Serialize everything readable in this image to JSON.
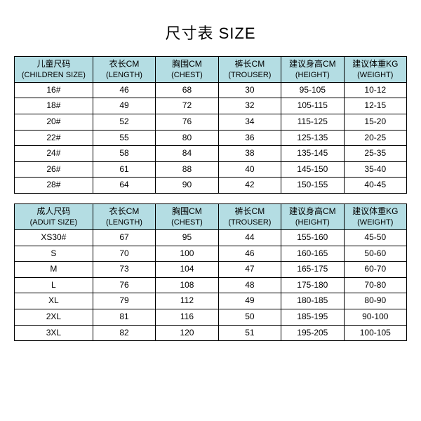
{
  "title": "尺寸表 SIZE",
  "colors": {
    "header_bg": "#b4dde3",
    "border": "#000000",
    "background": "#ffffff",
    "text": "#000000"
  },
  "children_table": {
    "type": "table",
    "columns": [
      {
        "cn": "儿童尺码",
        "en": "(CHILDREN SIZE)"
      },
      {
        "cn": "衣长CM",
        "en": "(LENGTH)"
      },
      {
        "cn": "胸围CM",
        "en": "(CHEST)"
      },
      {
        "cn": "裤长CM",
        "en": "(TROUSER)"
      },
      {
        "cn": "建议身高CM",
        "en": "(HEIGHT)"
      },
      {
        "cn": "建议体重KG",
        "en": "(WEIGHT)"
      }
    ],
    "rows": [
      [
        "16#",
        "46",
        "68",
        "30",
        "95-105",
        "10-12"
      ],
      [
        "18#",
        "49",
        "72",
        "32",
        "105-115",
        "12-15"
      ],
      [
        "20#",
        "52",
        "76",
        "34",
        "115-125",
        "15-20"
      ],
      [
        "22#",
        "55",
        "80",
        "36",
        "125-135",
        "20-25"
      ],
      [
        "24#",
        "58",
        "84",
        "38",
        "135-145",
        "25-35"
      ],
      [
        "26#",
        "61",
        "88",
        "40",
        "145-150",
        "35-40"
      ],
      [
        "28#",
        "64",
        "90",
        "42",
        "150-155",
        "40-45"
      ]
    ]
  },
  "adult_table": {
    "type": "table",
    "columns": [
      {
        "cn": "成人尺码",
        "en": "(ADUIT SIZE)"
      },
      {
        "cn": "衣长CM",
        "en": "(LENGTH)"
      },
      {
        "cn": "胸围CM",
        "en": "(CHEST)"
      },
      {
        "cn": "裤长CM",
        "en": "(TROUSER)"
      },
      {
        "cn": "建议身高CM",
        "en": "(HEIGHT)"
      },
      {
        "cn": "建议体重KG",
        "en": "(WEIGHT)"
      }
    ],
    "rows": [
      [
        "XS30#",
        "67",
        "95",
        "44",
        "155-160",
        "45-50"
      ],
      [
        "S",
        "70",
        "100",
        "46",
        "160-165",
        "50-60"
      ],
      [
        "M",
        "73",
        "104",
        "47",
        "165-175",
        "60-70"
      ],
      [
        "L",
        "76",
        "108",
        "48",
        "175-180",
        "70-80"
      ],
      [
        "XL",
        "79",
        "112",
        "49",
        "180-185",
        "80-90"
      ],
      [
        "2XL",
        "81",
        "116",
        "50",
        "185-195",
        "90-100"
      ],
      [
        "3XL",
        "82",
        "120",
        "51",
        "195-205",
        "100-105"
      ]
    ]
  }
}
